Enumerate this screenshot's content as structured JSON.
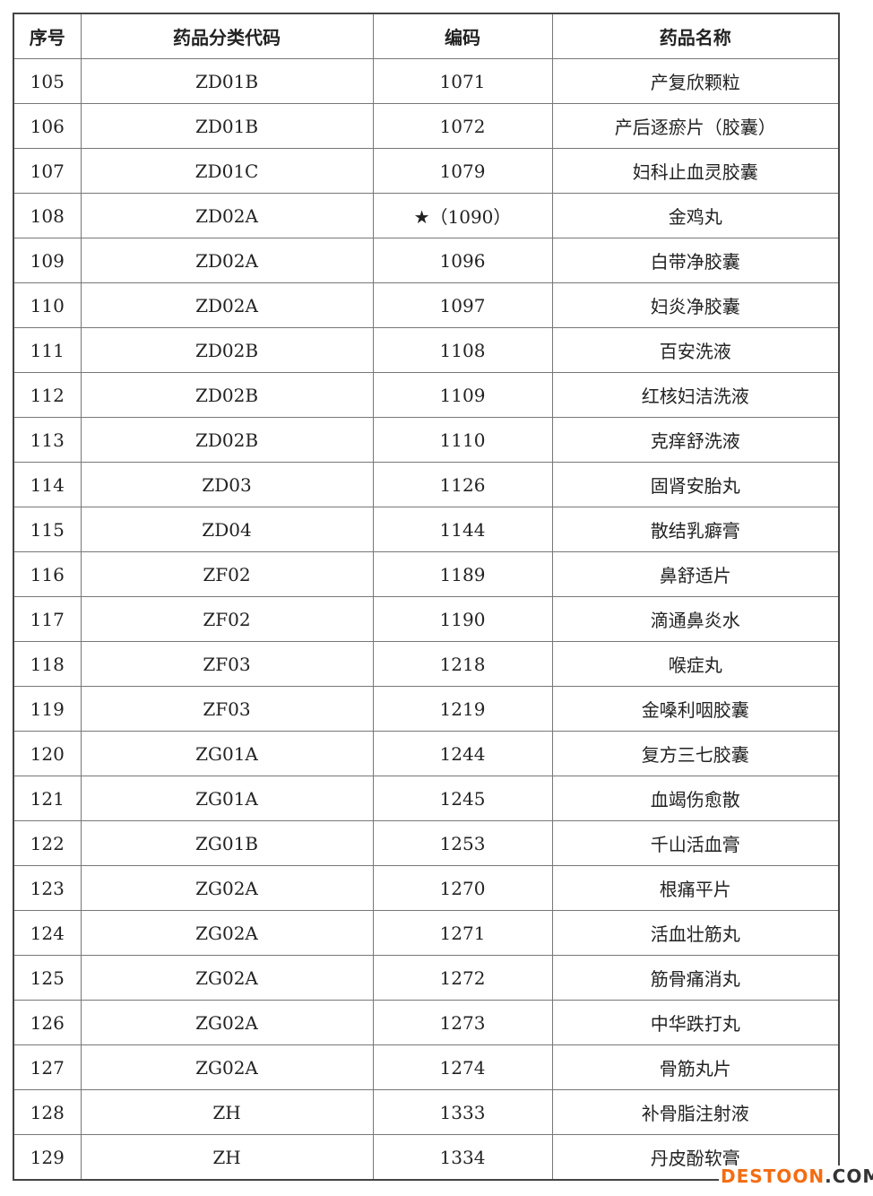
{
  "headers": [
    "序号",
    "药品分类代码",
    "编码",
    "药品名称"
  ],
  "rows": [
    [
      "105",
      "ZD01B",
      "1071",
      "产复欣颗粒"
    ],
    [
      "106",
      "ZD01B",
      "1072",
      "产后逐瘀片（胶囊）"
    ],
    [
      "107",
      "ZD01C",
      "1079",
      "妇科止血灵胶囊"
    ],
    [
      "108",
      "ZD02A",
      "★（1090）",
      "金鸡丸"
    ],
    [
      "109",
      "ZD02A",
      "1096",
      "白带净胶囊"
    ],
    [
      "110",
      "ZD02A",
      "1097",
      "妇炎净胶囊"
    ],
    [
      "111",
      "ZD02B",
      "1108",
      "百安洗液"
    ],
    [
      "112",
      "ZD02B",
      "1109",
      "红核妇洁洗液"
    ],
    [
      "113",
      "ZD02B",
      "1110",
      "克痒舒洗液"
    ],
    [
      "114",
      "ZD03",
      "1126",
      "固肾安胎丸"
    ],
    [
      "115",
      "ZD04",
      "1144",
      "散结乳癖膏"
    ],
    [
      "116",
      "ZF02",
      "1189",
      "鼻舒适片"
    ],
    [
      "117",
      "ZF02",
      "1190",
      "滴通鼻炎水"
    ],
    [
      "118",
      "ZF03",
      "1218",
      "喉症丸"
    ],
    [
      "119",
      "ZF03",
      "1219",
      "金嗓利咽胶囊"
    ],
    [
      "120",
      "ZG01A",
      "1244",
      "复方三七胶囊"
    ],
    [
      "121",
      "ZG01A",
      "1245",
      "血竭伤愈散"
    ],
    [
      "122",
      "ZG01B",
      "1253",
      "千山活血膏"
    ],
    [
      "123",
      "ZG02A",
      "1270",
      "根痛平片"
    ],
    [
      "124",
      "ZG02A",
      "1271",
      "活血壮筋丸"
    ],
    [
      "125",
      "ZG02A",
      "1272",
      "筋骨痛消丸"
    ],
    [
      "126",
      "ZG02A",
      "1273",
      "中华跌打丸"
    ],
    [
      "127",
      "ZG02A",
      "1274",
      "骨筋丸片"
    ],
    [
      "128",
      "ZH",
      "1333",
      "补骨脂注射液"
    ],
    [
      "129",
      "ZH",
      "1334",
      "丹皮酚软膏"
    ]
  ],
  "watermark": {
    "part1": "DESTOON",
    "part2": ".COM",
    "color_primary": "#f36c12",
    "color_secondary": "#333333"
  }
}
